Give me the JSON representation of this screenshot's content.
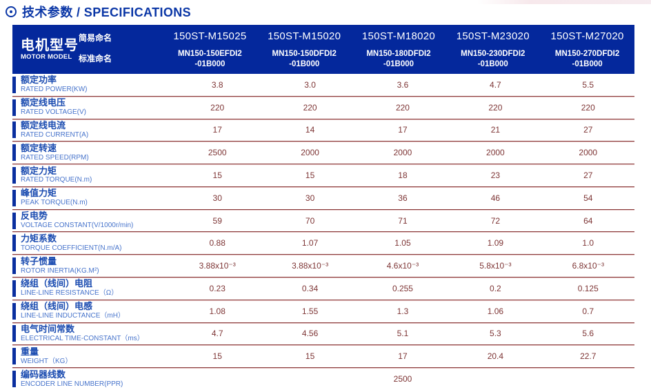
{
  "title": {
    "icon": "circle-dot",
    "text": "技术参数 / SPECIFICATIONS"
  },
  "colors": {
    "header_blue": "#04289c",
    "title_blue": "#0a36a6",
    "label_zh_blue": "#1a4bb0",
    "label_en_blue": "#4673cb",
    "value_maroon": "#7d3434",
    "separator_dark": "#8a3b3b",
    "separator_light": "#e3c1c1"
  },
  "table": {
    "header": {
      "row_title_zh": "电机型号",
      "row_title_en": "MOTOR MODEL",
      "simple_name_label": "简易命名",
      "standard_name_label": "标准命名",
      "models": [
        {
          "simple": "150ST-M15025",
          "standard_line1": "MN150-150EFDI2",
          "standard_line2": "-01B000"
        },
        {
          "simple": "150ST-M15020",
          "standard_line1": "MN150-150DFDI2",
          "standard_line2": "-01B000"
        },
        {
          "simple": "150ST-M18020",
          "standard_line1": "MN150-180DFDI2",
          "standard_line2": "-01B000"
        },
        {
          "simple": "150ST-M23020",
          "standard_line1": "MN150-230DFDI2",
          "standard_line2": "-01B000"
        },
        {
          "simple": "150ST-M27020",
          "standard_line1": "MN150-270DFDI2",
          "standard_line2": "-01B000"
        }
      ]
    },
    "rows": [
      {
        "zh": "额定功率",
        "en": "RATED POWER(KW)",
        "values": [
          "3.8",
          "3.0",
          "3.6",
          "4.7",
          "5.5"
        ]
      },
      {
        "zh": "额定线电压",
        "en": "RATED VOLTAGE(V)",
        "values": [
          "220",
          "220",
          "220",
          "220",
          "220"
        ]
      },
      {
        "zh": "额定线电流",
        "en": "RATED CURRENT(A)",
        "values": [
          "17",
          "14",
          "17",
          "21",
          "27"
        ]
      },
      {
        "zh": "额定转速",
        "en": "RATED SPEED(RPM)",
        "values": [
          "2500",
          "2000",
          "2000",
          "2000",
          "2000"
        ]
      },
      {
        "zh": "额定力矩",
        "en": "RATED TORQUE(N.m)",
        "values": [
          "15",
          "15",
          "18",
          "23",
          "27"
        ]
      },
      {
        "zh": "峰值力矩",
        "en": "PEAK TORQUE(N.m)",
        "values": [
          "30",
          "30",
          "36",
          "46",
          "54"
        ]
      },
      {
        "zh": "反电势",
        "en": "VOLTAGE CONSTANT(V/1000r/min)",
        "values": [
          "59",
          "70",
          "71",
          "72",
          "64"
        ]
      },
      {
        "zh": "力矩系数",
        "en": "TORQUE COEFFICIENT(N.m/A)",
        "values": [
          "0.88",
          "1.07",
          "1.05",
          "1.09",
          "1.0"
        ]
      },
      {
        "zh": "转子惯量",
        "en": "ROTOR INERTIA(KG.M²)",
        "values": [
          "3.88x10⁻³",
          "3.88x10⁻³",
          "4.6x10⁻³",
          "5.8x10⁻³",
          "6.8x10⁻³"
        ]
      },
      {
        "zh": "绕组（线间）电阻",
        "en": "LINE-LINE RESISTANCE（Ω）",
        "values": [
          "0.23",
          "0.34",
          "0.255",
          "0.2",
          "0.125"
        ]
      },
      {
        "zh": "绕组（线间）电感",
        "en": "LINE-LINE INDUCTANCE（mH）",
        "values": [
          "1.08",
          "1.55",
          "1.3",
          "1.06",
          "0.7"
        ]
      },
      {
        "zh": "电气时间常数",
        "en": "ELECTRICAL TIME-CONSTANT（ms）",
        "values": [
          "4.7",
          "4.56",
          "5.1",
          "5.3",
          "5.6"
        ]
      },
      {
        "zh": "重量",
        "en": "WEIGHT（KG）",
        "values": [
          "15",
          "15",
          "17",
          "20.4",
          "22.7"
        ]
      },
      {
        "zh": "编码器线数",
        "en": "ENCODER LINE NUMBER(PPR)",
        "merged_value": "2500"
      }
    ]
  }
}
